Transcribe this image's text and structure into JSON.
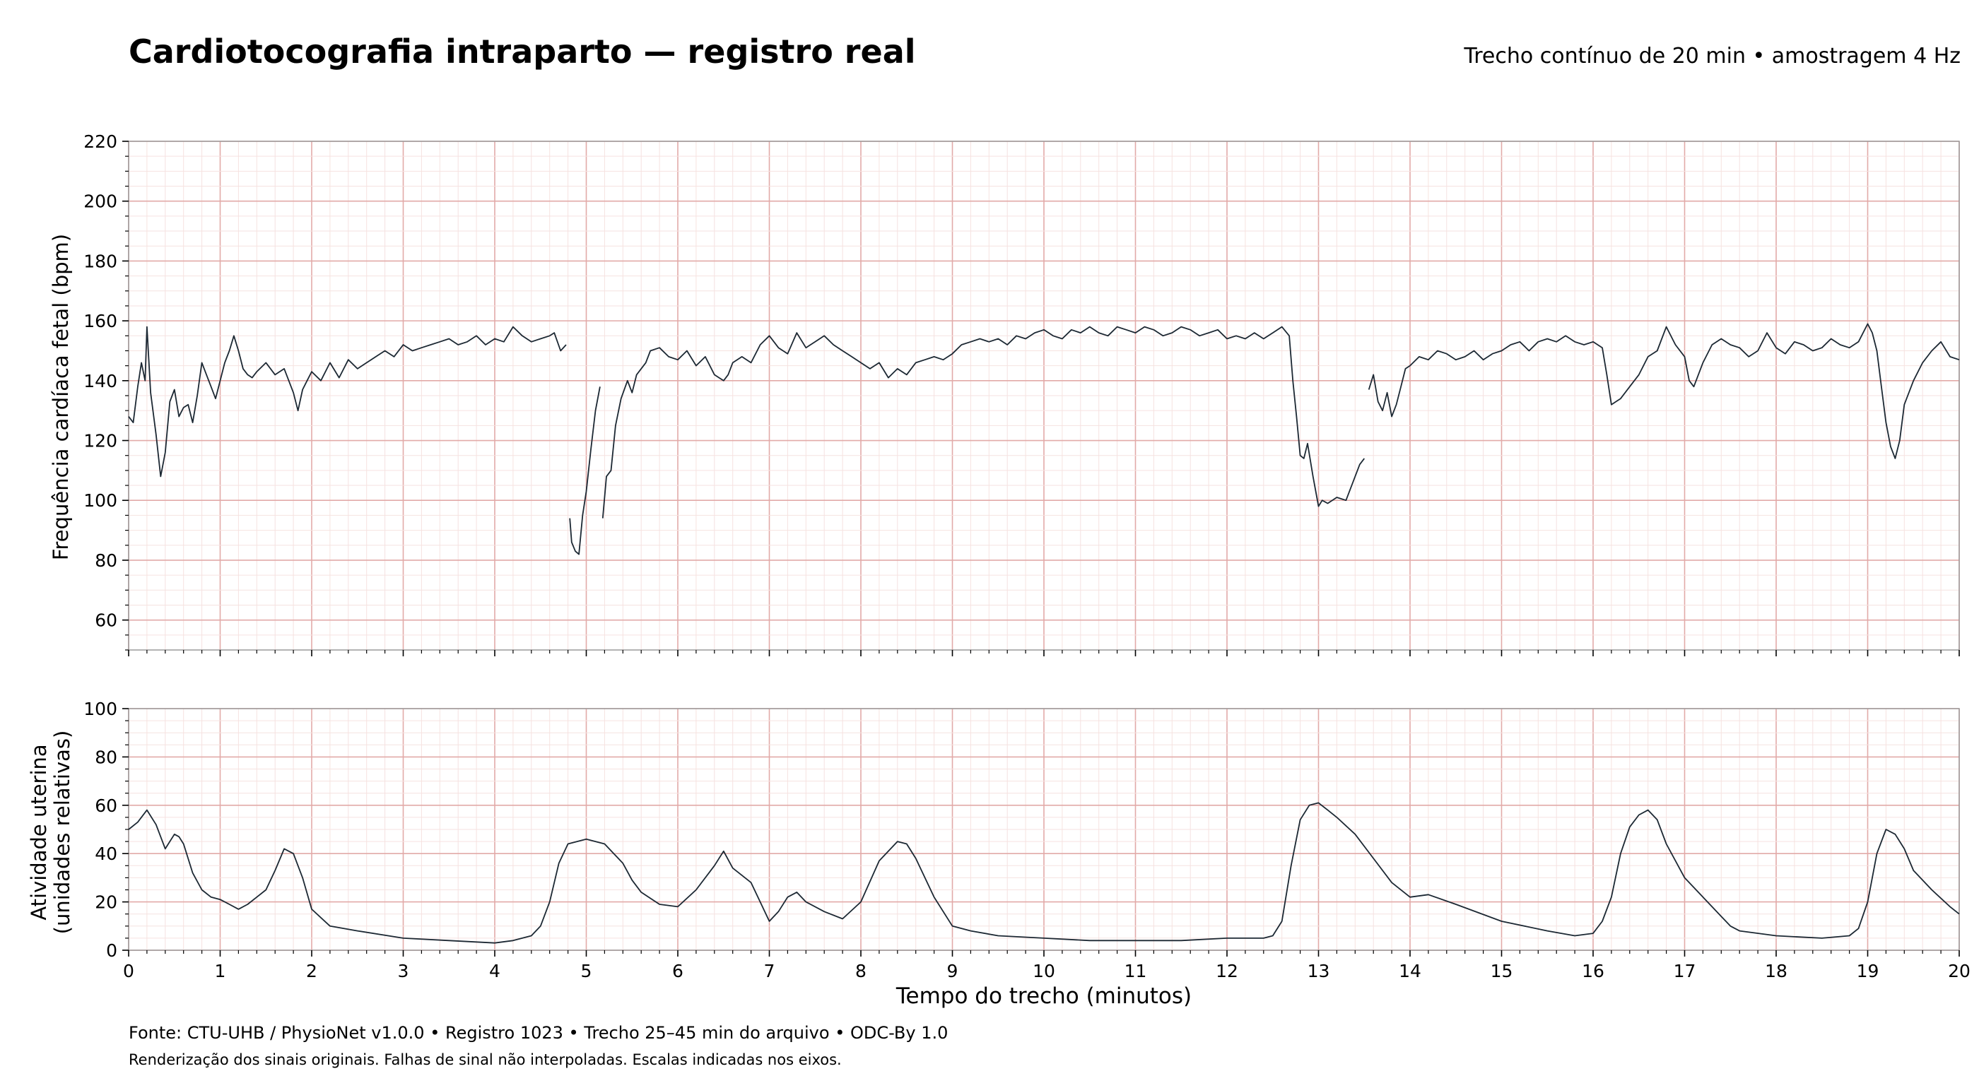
{
  "header": {
    "title": "Cardiotocografia intraparto — registro real",
    "subtitle": "Trecho contínuo de 20 min • amostragem 4 Hz"
  },
  "footer": {
    "source": "Fonte: CTU-UHB / PhysioNet v1.0.0 • Registro 1023 • Trecho 25–45 min do arquivo • ODC-By 1.0",
    "note": "Renderização dos sinais originais. Falhas de sinal não interpoladas. Escalas indicadas nos eixos."
  },
  "colors": {
    "trace": "#1c2833",
    "grid_major": "#e2aaa8",
    "grid_minor": "#f6e2e0",
    "axis": "#9a9a9a"
  },
  "chart_data": [
    {
      "type": "line",
      "name": "fhr",
      "xlabel": "Tempo do trecho (minutos)",
      "ylabel": "Frequência cardíaca fetal (bpm)",
      "xlim": [
        0,
        20
      ],
      "ylim": [
        50,
        220
      ],
      "yticks": [
        60,
        80,
        100,
        120,
        140,
        160,
        180,
        200,
        220
      ],
      "grid": true,
      "segments": [
        {
          "x": [
            0,
            0.05,
            0.1,
            0.14,
            0.18,
            0.2,
            0.24,
            0.3,
            0.35,
            0.4,
            0.45,
            0.5,
            0.55,
            0.6,
            0.65,
            0.7,
            0.75,
            0.8,
            0.85,
            0.9,
            0.95,
            1.0,
            1.05,
            1.1,
            1.15,
            1.2,
            1.25,
            1.3,
            1.35,
            1.4,
            1.5,
            1.6,
            1.7,
            1.8,
            1.85,
            1.9,
            1.95,
            2.0,
            2.1,
            2.2,
            2.3,
            2.4,
            2.5,
            2.6,
            2.7,
            2.8,
            2.9,
            3.0,
            3.1,
            3.2,
            3.3,
            3.4,
            3.5,
            3.6,
            3.7,
            3.8,
            3.9,
            4.0,
            4.1,
            4.2,
            4.3,
            4.4,
            4.5,
            4.6,
            4.65,
            4.72,
            4.78
          ],
          "y": [
            128,
            126,
            138,
            146,
            140,
            158,
            136,
            122,
            108,
            116,
            133,
            137,
            128,
            131,
            132,
            126,
            135,
            146,
            142,
            138,
            134,
            140,
            146,
            150,
            155,
            150,
            144,
            142,
            141,
            143,
            146,
            142,
            144,
            136,
            130,
            137,
            140,
            143,
            140,
            146,
            141,
            147,
            144,
            146,
            148,
            150,
            148,
            152,
            150,
            151,
            152,
            153,
            154,
            152,
            153,
            155,
            152,
            154,
            153,
            158,
            155,
            153,
            154,
            155,
            156,
            150,
            152
          ]
        },
        {
          "x": [
            4.82,
            4.84,
            4.88,
            4.92,
            4.96,
            5.0,
            5.05,
            5.1,
            5.15
          ],
          "y": [
            94,
            86,
            83,
            82,
            95,
            103,
            117,
            130,
            138
          ]
        },
        {
          "x": [
            5.18,
            5.22,
            5.27,
            5.32,
            5.38,
            5.45,
            5.5,
            5.55,
            5.6,
            5.65,
            5.7,
            5.8,
            5.9,
            6.0,
            6.1,
            6.2,
            6.3,
            6.4,
            6.5,
            6.55,
            6.6,
            6.7,
            6.8,
            6.9,
            7.0,
            7.1,
            7.2,
            7.3,
            7.4,
            7.5,
            7.6,
            7.7,
            7.8,
            7.9,
            8.0,
            8.1,
            8.2,
            8.3,
            8.4,
            8.5,
            8.6,
            8.7,
            8.8,
            8.9,
            9.0,
            9.1,
            9.2,
            9.3,
            9.4,
            9.5,
            9.6,
            9.7,
            9.8,
            9.9,
            10.0,
            10.1,
            10.2,
            10.3,
            10.4,
            10.5,
            10.6,
            10.7,
            10.8,
            10.9,
            11.0,
            11.1,
            11.2,
            11.3,
            11.4,
            11.5,
            11.6,
            11.7,
            11.8,
            11.9,
            12.0,
            12.1,
            12.2,
            12.3,
            12.4,
            12.5,
            12.6,
            12.68,
            12.72,
            12.76,
            12.8,
            12.84,
            12.88,
            12.94,
            13.0,
            13.04,
            13.1,
            13.2,
            13.3,
            13.4,
            13.45,
            13.5
          ],
          "y": [
            94,
            108,
            110,
            125,
            134,
            140,
            136,
            142,
            144,
            146,
            150,
            151,
            148,
            147,
            150,
            145,
            148,
            142,
            140,
            142,
            146,
            148,
            146,
            152,
            155,
            151,
            149,
            156,
            151,
            153,
            155,
            152,
            150,
            148,
            146,
            144,
            146,
            141,
            144,
            142,
            146,
            147,
            148,
            147,
            149,
            152,
            153,
            154,
            153,
            154,
            152,
            155,
            154,
            156,
            157,
            155,
            154,
            157,
            156,
            158,
            156,
            155,
            158,
            157,
            156,
            158,
            157,
            155,
            156,
            158,
            157,
            155,
            156,
            157,
            154,
            155,
            154,
            156,
            154,
            156,
            158,
            155,
            140,
            128,
            115,
            114,
            119,
            108,
            98,
            100,
            99,
            101,
            100,
            108,
            112,
            114
          ]
        },
        {
          "x": [
            13.55,
            13.6,
            13.65,
            13.7,
            13.75,
            13.8,
            13.85,
            13.9,
            13.95,
            14.0,
            14.1,
            14.2,
            14.3,
            14.4,
            14.5,
            14.6,
            14.7,
            14.8,
            14.9,
            15.0,
            15.1,
            15.2,
            15.3,
            15.4,
            15.5,
            15.6,
            15.7,
            15.8,
            15.9,
            16.0,
            16.1,
            16.15,
            16.2,
            16.3,
            16.4,
            16.5,
            16.6,
            16.7,
            16.8,
            16.9,
            17.0,
            17.05,
            17.1,
            17.2,
            17.3,
            17.4,
            17.5,
            17.6,
            17.7,
            17.8,
            17.9,
            18.0,
            18.1,
            18.2,
            18.3,
            18.4,
            18.5,
            18.6,
            18.7,
            18.8,
            18.9,
            19.0,
            19.05,
            19.1,
            19.15,
            19.2,
            19.25,
            19.3,
            19.35,
            19.4,
            19.5,
            19.6,
            19.7,
            19.8,
            19.9,
            20.0
          ],
          "y": [
            137,
            142,
            133,
            130,
            136,
            128,
            132,
            138,
            144,
            145,
            148,
            147,
            150,
            149,
            147,
            148,
            150,
            147,
            149,
            150,
            152,
            153,
            150,
            153,
            154,
            153,
            155,
            153,
            152,
            153,
            151,
            142,
            132,
            134,
            138,
            142,
            148,
            150,
            158,
            152,
            148,
            140,
            138,
            146,
            152,
            154,
            152,
            151,
            148,
            150,
            156,
            151,
            149,
            153,
            152,
            150,
            151,
            154,
            152,
            151,
            153,
            159,
            156,
            150,
            138,
            126,
            118,
            114,
            120,
            132,
            140,
            146,
            150,
            153,
            148,
            147
          ]
        }
      ]
    },
    {
      "type": "line",
      "name": "uc",
      "xlabel": "Tempo do trecho (minutos)",
      "ylabel": [
        "Atividade uterina",
        "(unidades relativas)"
      ],
      "xlim": [
        0,
        20
      ],
      "ylim": [
        0,
        100
      ],
      "xticks": [
        0,
        1,
        2,
        3,
        4,
        5,
        6,
        7,
        8,
        9,
        10,
        11,
        12,
        13,
        14,
        15,
        16,
        17,
        18,
        19,
        20
      ],
      "yticks": [
        0,
        20,
        40,
        60,
        80,
        100
      ],
      "grid": true,
      "segments": [
        {
          "x": [
            0,
            0.1,
            0.2,
            0.3,
            0.4,
            0.5,
            0.55,
            0.6,
            0.7,
            0.8,
            0.9,
            1.0,
            1.1,
            1.2,
            1.3,
            1.4,
            1.5,
            1.6,
            1.7,
            1.8,
            1.9,
            2.0,
            2.2,
            2.5,
            3.0,
            3.5,
            4.0,
            4.2,
            4.4,
            4.5,
            4.6,
            4.7,
            4.8,
            5.0,
            5.2,
            5.4,
            5.5,
            5.6,
            5.8,
            6.0,
            6.2,
            6.4,
            6.5,
            6.6,
            6.8,
            7.0,
            7.1,
            7.2,
            7.3,
            7.4,
            7.6,
            7.8,
            8.0,
            8.2,
            8.4,
            8.5,
            8.6,
            8.8,
            9.0,
            9.2,
            9.5,
            10.0,
            10.5,
            11.0,
            11.5,
            12.0,
            12.4,
            12.5,
            12.6,
            12.7,
            12.8,
            12.9,
            13.0,
            13.1,
            13.2,
            13.4,
            13.6,
            13.8,
            14.0,
            14.2,
            14.5,
            15.0,
            15.5,
            15.8,
            16.0,
            16.1,
            16.2,
            16.3,
            16.4,
            16.5,
            16.6,
            16.7,
            16.8,
            17.0,
            17.2,
            17.4,
            17.5,
            17.6,
            18.0,
            18.5,
            18.8,
            18.9,
            19.0,
            19.1,
            19.2,
            19.3,
            19.4,
            19.5,
            19.7,
            19.9,
            20.0
          ],
          "y": [
            50,
            53,
            58,
            52,
            42,
            48,
            47,
            44,
            32,
            25,
            22,
            21,
            19,
            17,
            19,
            22,
            25,
            33,
            42,
            40,
            30,
            17,
            10,
            8,
            5,
            4,
            3,
            4,
            6,
            10,
            20,
            36,
            44,
            46,
            44,
            36,
            29,
            24,
            19,
            18,
            25,
            35,
            41,
            34,
            28,
            12,
            16,
            22,
            24,
            20,
            16,
            13,
            20,
            37,
            45,
            44,
            38,
            22,
            10,
            8,
            6,
            5,
            4,
            4,
            4,
            5,
            5,
            6,
            12,
            35,
            54,
            60,
            61,
            58,
            55,
            48,
            38,
            28,
            22,
            23,
            19,
            12,
            8,
            6,
            7,
            12,
            22,
            40,
            51,
            56,
            58,
            54,
            44,
            30,
            22,
            14,
            10,
            8,
            6,
            5,
            6,
            9,
            20,
            40,
            50,
            48,
            42,
            33,
            25,
            18,
            15
          ]
        }
      ]
    }
  ]
}
